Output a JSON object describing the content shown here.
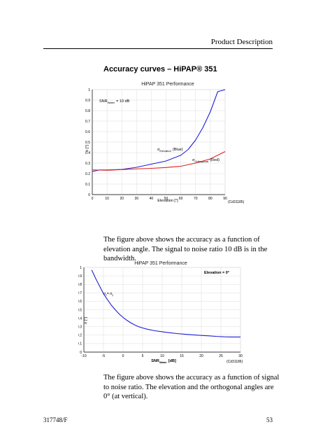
{
  "header": {
    "title": "Product Description"
  },
  "section": {
    "heading": "Accuracy curves – HiPAP® 351"
  },
  "paragraph1": "The figure above shows the accuracy as a function of elevation angle. The signal to noise ratio 10 dB is in the bandwidth.",
  "paragraph2": "The figure above shows the accuracy as a function of signal to noise ratio. The elevation and the orthogonal angles are 0° (at vertical).",
  "footer": {
    "doc_number": "317748/F",
    "page_number": "53"
  },
  "chart_data": [
    {
      "type": "line",
      "title": "HiPAP 351 Performance",
      "xlabel": "Elevation [°]",
      "ylabel": "σ [°]",
      "xlim": [
        0,
        90
      ],
      "ylim": [
        0,
        1
      ],
      "x_ticks": [
        0,
        10,
        20,
        30,
        40,
        50,
        60,
        70,
        80,
        90
      ],
      "y_ticks": [
        0,
        0.1,
        0.2,
        0.3,
        0.4,
        0.5,
        0.6,
        0.7,
        0.8,
        0.9,
        1
      ],
      "grid": true,
      "annotations": {
        "snr": "SNR",
        "snr_sub": "Water",
        "snr_value": "= 10 dB",
        "figure_id": "(Cd31185)"
      },
      "series": [
        {
          "name": "σ Elevation (Blue)",
          "label_main": "σ",
          "label_sub": "Elevation",
          "label_suffix": "(Blue)",
          "color": "#1f1fd6",
          "x": [
            0,
            5,
            10,
            20,
            30,
            40,
            50,
            60,
            65,
            70,
            75,
            80,
            85,
            90
          ],
          "y": [
            0.22,
            0.235,
            0.235,
            0.24,
            0.26,
            0.29,
            0.32,
            0.375,
            0.43,
            0.52,
            0.64,
            0.79,
            0.98,
            1.0
          ]
        },
        {
          "name": "σ Orthogonal (Red)",
          "label_main": "σ",
          "label_sub": "Orthogonal",
          "label_suffix": "(Red)",
          "color": "#e02020",
          "x": [
            0,
            10,
            20,
            30,
            40,
            50,
            60,
            70,
            80,
            90
          ],
          "y": [
            0.235,
            0.232,
            0.238,
            0.245,
            0.25,
            0.258,
            0.27,
            0.3,
            0.34,
            0.41
          ]
        }
      ]
    },
    {
      "type": "line",
      "title": "HiPAP 351 Performance",
      "xlabel": "SNR",
      "xlabel_sub": "Water",
      "xlabel_suffix": "[dB]",
      "ylabel": "σ [°]",
      "xlim": [
        -10,
        30
      ],
      "ylim": [
        0,
        1
      ],
      "x_ticks": [
        -10,
        -5,
        0,
        5,
        10,
        15,
        20,
        25,
        30
      ],
      "y_ticks": [
        0,
        0.1,
        0.2,
        0.3,
        0.4,
        0.5,
        0.6,
        0.7,
        0.8,
        0.9,
        1
      ],
      "grid": true,
      "annotations": {
        "elevation": "Elevation = 0°",
        "figure_id": "(Cd31186)",
        "curve_label": "σ",
        "curve_label_sub": "x",
        "curve_label_mid": "= σ",
        "curve_label_sub2": "y"
      },
      "series": [
        {
          "name": "σx = σy",
          "color": "#1f1fd6",
          "x": [
            -8,
            -7,
            -6,
            -5,
            -4,
            -3,
            -2,
            -1,
            0,
            1,
            2,
            3,
            4,
            5,
            6,
            8,
            10,
            12,
            14,
            16,
            18,
            20,
            22,
            24,
            26,
            28,
            30
          ],
          "y": [
            0.97,
            0.87,
            0.78,
            0.69,
            0.62,
            0.555,
            0.5,
            0.45,
            0.41,
            0.375,
            0.345,
            0.32,
            0.3,
            0.285,
            0.272,
            0.253,
            0.24,
            0.228,
            0.218,
            0.21,
            0.203,
            0.197,
            0.192,
            0.185,
            0.18,
            0.178,
            0.178
          ]
        }
      ]
    }
  ]
}
